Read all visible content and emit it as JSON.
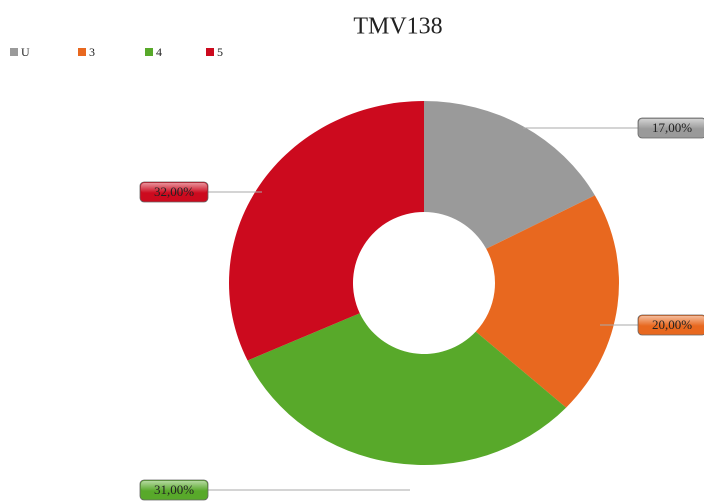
{
  "chart_data": {
    "type": "donut",
    "title": "TMV138",
    "categories": [
      "U",
      "3",
      "4",
      "5"
    ],
    "values": [
      17,
      20,
      31,
      32
    ],
    "value_labels": [
      "17,00%",
      "20,00%",
      "31,00%",
      "32,00%"
    ],
    "colors": [
      "#9a9a9a",
      "#e8681f",
      "#58a92a",
      "#cc0a1e"
    ],
    "legend": "top-left"
  }
}
